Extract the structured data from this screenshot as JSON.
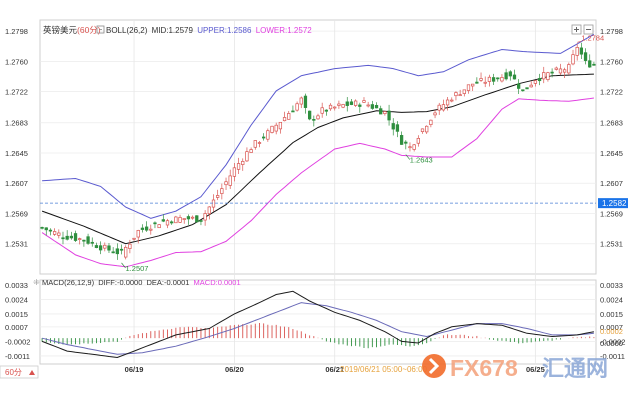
{
  "header": {
    "symbol": "英镑美元",
    "period": "(60分)",
    "indicator": "BOLL(26,2)",
    "mid_label": "MID:1.2579",
    "upper_label": "UPPER:1.2586",
    "lower_label": "LOWER:1.2572"
  },
  "macd_header": {
    "params": "MACD(26,12,9)",
    "diff": "DIFF:-0.0000",
    "dea": "DEA:-0.0001",
    "macd": "MACD:0.0001"
  },
  "period_selector": "60分",
  "period_selector_icon": "triangle-up-icon",
  "watermark": {
    "timestamp": "2019/06/21 05:00~06:00",
    "brand": "FX678",
    "brand_cn": "汇通网"
  },
  "toolbar": {
    "zoom_in_icon": "plus-icon",
    "zoom_out_icon": "minus-icon"
  },
  "colors": {
    "up": "#d9534f",
    "down": "#2f8f3f",
    "mid": "#111111",
    "upper": "#5a5acf",
    "lower": "#e040e0",
    "diff": "#1c1c1c",
    "dea": "#6a6ab8",
    "crosshair": "#4a7fd4",
    "price_tag": "#1a73e8",
    "label_high": "#d9534f",
    "label_low": "#2f8f3f"
  },
  "chart_data": [
    {
      "type": "candlestick",
      "y_ticks": [
        1.2798,
        1.276,
        1.2722,
        1.2683,
        1.2645,
        1.2607,
        1.2569,
        1.2531
      ],
      "ylim": [
        1.2493,
        1.2812
      ],
      "x_ticks": [
        "06/19",
        "06/20",
        "06/21",
        "06/25"
      ],
      "x_tick_index": [
        22,
        46,
        70,
        118
      ],
      "current_price": "1.2582",
      "current_value": 1.2582,
      "annotations": [
        {
          "text": "1.2784",
          "value": 1.2784,
          "index": 128,
          "kind": "high"
        },
        {
          "text": "1.2507",
          "value": 1.2507,
          "index": 19,
          "kind": "low"
        },
        {
          "text": "1.2643",
          "value": 1.2643,
          "index": 87,
          "kind": "low"
        }
      ],
      "series": [
        {
          "name": "BOLL MID",
          "key": "mid"
        },
        {
          "name": "BOLL UPPER",
          "key": "upper"
        },
        {
          "name": "BOLL LOWER",
          "key": "lower"
        }
      ],
      "anchors": {
        "close": [
          [
            0,
            1.2551
          ],
          [
            5,
            1.2541
          ],
          [
            10,
            1.2536
          ],
          [
            15,
            1.2525
          ],
          [
            19,
            1.2519
          ],
          [
            23,
            1.2547
          ],
          [
            28,
            1.2558
          ],
          [
            33,
            1.2563
          ],
          [
            38,
            1.2562
          ],
          [
            42,
            1.2592
          ],
          [
            46,
            1.2625
          ],
          [
            50,
            1.2652
          ],
          [
            54,
            1.267
          ],
          [
            58,
            1.269
          ],
          [
            62,
            1.2712
          ],
          [
            64,
            1.2685
          ],
          [
            67,
            1.2698
          ],
          [
            72,
            1.2705
          ],
          [
            77,
            1.2708
          ],
          [
            82,
            1.2696
          ],
          [
            86,
            1.266
          ],
          [
            88,
            1.2652
          ],
          [
            91,
            1.2675
          ],
          [
            94,
            1.2697
          ],
          [
            98,
            1.2715
          ],
          [
            103,
            1.2732
          ],
          [
            108,
            1.2738
          ],
          [
            112,
            1.2744
          ],
          [
            115,
            1.2722
          ],
          [
            118,
            1.2738
          ],
          [
            122,
            1.2746
          ],
          [
            126,
            1.2752
          ],
          [
            128,
            1.2779
          ],
          [
            130,
            1.2758
          ],
          [
            132,
            1.2756
          ]
        ],
        "mid": [
          [
            0,
            1.2572
          ],
          [
            10,
            1.2553
          ],
          [
            20,
            1.2531
          ],
          [
            28,
            1.2541
          ],
          [
            36,
            1.2555
          ],
          [
            44,
            1.258
          ],
          [
            52,
            1.262
          ],
          [
            60,
            1.2658
          ],
          [
            66,
            1.2677
          ],
          [
            72,
            1.2689
          ],
          [
            80,
            1.2698
          ],
          [
            86,
            1.2696
          ],
          [
            92,
            1.2697
          ],
          [
            98,
            1.2703
          ],
          [
            106,
            1.2718
          ],
          [
            114,
            1.2732
          ],
          [
            122,
            1.2742
          ],
          [
            132,
            1.2744
          ]
        ],
        "upper": [
          [
            0,
            1.261
          ],
          [
            8,
            1.2613
          ],
          [
            14,
            1.2603
          ],
          [
            20,
            1.2577
          ],
          [
            26,
            1.2563
          ],
          [
            32,
            1.2572
          ],
          [
            38,
            1.259
          ],
          [
            44,
            1.263
          ],
          [
            50,
            1.268
          ],
          [
            56,
            1.2723
          ],
          [
            62,
            1.2742
          ],
          [
            70,
            1.2751
          ],
          [
            78,
            1.2755
          ],
          [
            84,
            1.2751
          ],
          [
            90,
            1.2742
          ],
          [
            96,
            1.2747
          ],
          [
            102,
            1.2762
          ],
          [
            110,
            1.2775
          ],
          [
            116,
            1.2772
          ],
          [
            124,
            1.277
          ],
          [
            132,
            1.2794
          ]
        ],
        "lower": [
          [
            0,
            1.2545
          ],
          [
            8,
            1.2517
          ],
          [
            14,
            1.2506
          ],
          [
            20,
            1.2502
          ],
          [
            26,
            1.251
          ],
          [
            32,
            1.252
          ],
          [
            38,
            1.2521
          ],
          [
            44,
            1.2534
          ],
          [
            50,
            1.256
          ],
          [
            56,
            1.2593
          ],
          [
            62,
            1.262
          ],
          [
            70,
            1.265
          ],
          [
            76,
            1.2657
          ],
          [
            82,
            1.265
          ],
          [
            86,
            1.2642
          ],
          [
            92,
            1.264
          ],
          [
            98,
            1.264
          ],
          [
            104,
            1.2663
          ],
          [
            110,
            1.27
          ],
          [
            114,
            1.2713
          ],
          [
            120,
            1.2711
          ],
          [
            126,
            1.271
          ],
          [
            132,
            1.2714
          ]
        ]
      },
      "bar_count": 133
    },
    {
      "type": "bar+line",
      "name": "MACD",
      "y_ticks": [
        0.0033,
        0.0024,
        0.0015,
        0.0007,
        -0.0002,
        -0.0011
      ],
      "ylim": [
        -0.0016,
        0.0036
      ],
      "current_values": {
        "diff": "0.0002",
        "macd": "0.0000"
      },
      "anchors": {
        "diff": [
          [
            0,
            -0.0002
          ],
          [
            6,
            -0.0008
          ],
          [
            12,
            -0.001
          ],
          [
            18,
            -0.0012
          ],
          [
            24,
            -0.0006
          ],
          [
            32,
            0.0002
          ],
          [
            40,
            0.0006
          ],
          [
            46,
            0.0015
          ],
          [
            52,
            0.0022
          ],
          [
            56,
            0.0027
          ],
          [
            60,
            0.0029
          ],
          [
            64,
            0.0023
          ],
          [
            70,
            0.0016
          ],
          [
            76,
            0.0011
          ],
          [
            82,
            0.0004
          ],
          [
            86,
            -0.0002
          ],
          [
            90,
            -0.0003
          ],
          [
            94,
            0.0003
          ],
          [
            98,
            0.0007
          ],
          [
            104,
            0.0009
          ],
          [
            110,
            0.0008
          ],
          [
            116,
            0.0003
          ],
          [
            122,
            0.0001
          ],
          [
            128,
            0.0002
          ],
          [
            132,
            0.0004
          ]
        ],
        "dea": [
          [
            0,
            0.0
          ],
          [
            6,
            -0.0004
          ],
          [
            12,
            -0.0007
          ],
          [
            18,
            -0.001
          ],
          [
            24,
            -0.0009
          ],
          [
            32,
            -0.0005
          ],
          [
            40,
            0.0001
          ],
          [
            46,
            0.0006
          ],
          [
            52,
            0.0012
          ],
          [
            58,
            0.0018
          ],
          [
            62,
            0.0022
          ],
          [
            68,
            0.002
          ],
          [
            74,
            0.0016
          ],
          [
            80,
            0.0011
          ],
          [
            86,
            0.0004
          ],
          [
            92,
            0.0001
          ],
          [
            98,
            0.0005
          ],
          [
            104,
            0.0009
          ],
          [
            110,
            0.0009
          ],
          [
            116,
            0.0006
          ],
          [
            122,
            0.0002
          ],
          [
            128,
            0.0002
          ],
          [
            132,
            0.0003
          ]
        ],
        "hist": [
          [
            0,
            -0.0002
          ],
          [
            6,
            -0.0004
          ],
          [
            12,
            -0.0003
          ],
          [
            18,
            -0.0002
          ],
          [
            22,
            0.0002
          ],
          [
            28,
            0.0005
          ],
          [
            34,
            0.0007
          ],
          [
            40,
            0.0006
          ],
          [
            46,
            0.0008
          ],
          [
            52,
            0.0009
          ],
          [
            56,
            0.0008
          ],
          [
            60,
            0.0006
          ],
          [
            64,
            0.0002
          ],
          [
            68,
            -0.0002
          ],
          [
            72,
            -0.0004
          ],
          [
            78,
            -0.0006
          ],
          [
            84,
            -0.0004
          ],
          [
            88,
            -0.0005
          ],
          [
            92,
            -0.0003
          ],
          [
            96,
            0.0002
          ],
          [
            100,
            0.0002
          ],
          [
            104,
            0.0001
          ],
          [
            108,
            -0.0001
          ],
          [
            114,
            -0.0003
          ],
          [
            120,
            -0.0002
          ],
          [
            126,
            0.0
          ],
          [
            132,
            0.0001
          ]
        ]
      }
    }
  ]
}
